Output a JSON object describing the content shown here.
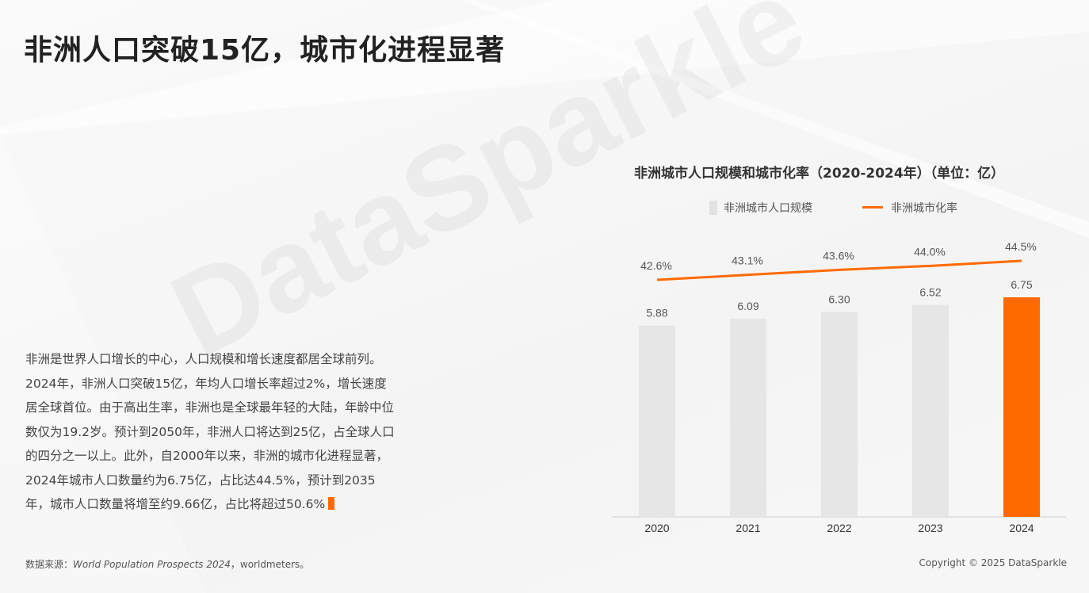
{
  "page": {
    "title": "非洲人口突破15亿，城市化进程显著",
    "watermark": "DataSparkle",
    "body_text": "非洲是世界人口增长的中心，人口规模和增长速度都居全球前列。2024年，非洲人口突破15亿，年均人口增长率超过2%，增长速度居全球首位。由于高出生率，非洲也是全球最年轻的大陆，年龄中位数仅为19.2岁。预计到2050年，非洲人口将达到25亿，占全球人口的四分之一以上。此外，自2000年以来，非洲的城市化进程显著，2024年城市人口数量约为6.75亿，占比达44.5%，预计到2035年，城市人口数量将增至约9.66亿，占比将超过50.6%",
    "source_label": "数据来源：",
    "source_italic": "World Population Prospects 2024",
    "source_rest": "，worldmeters。",
    "copyright": "Copyright © 2025 DataSparkle"
  },
  "colors": {
    "accent": "#ff6a00",
    "bar_default": "#e6e6e6",
    "bar_highlight": "#ff6a00"
  },
  "chart_data": {
    "type": "bar",
    "title": "非洲城市人口规模和城市化率（2020-2024年）（单位：亿）",
    "categories": [
      "2020",
      "2021",
      "2022",
      "2023",
      "2024"
    ],
    "series": [
      {
        "name": "非洲城市人口规模",
        "type": "bar",
        "values": [
          5.88,
          6.09,
          6.3,
          6.52,
          6.75
        ],
        "labels": [
          "5.88",
          "6.09",
          "6.30",
          "6.52",
          "6.75"
        ],
        "highlight_index": 4
      },
      {
        "name": "非洲城市化率",
        "type": "line",
        "values": [
          42.6,
          43.1,
          43.6,
          44.0,
          44.5
        ],
        "labels": [
          "42.6%",
          "43.1%",
          "43.6%",
          "44.0%",
          "44.5%"
        ]
      }
    ],
    "legend_position": "top",
    "grid": false
  }
}
